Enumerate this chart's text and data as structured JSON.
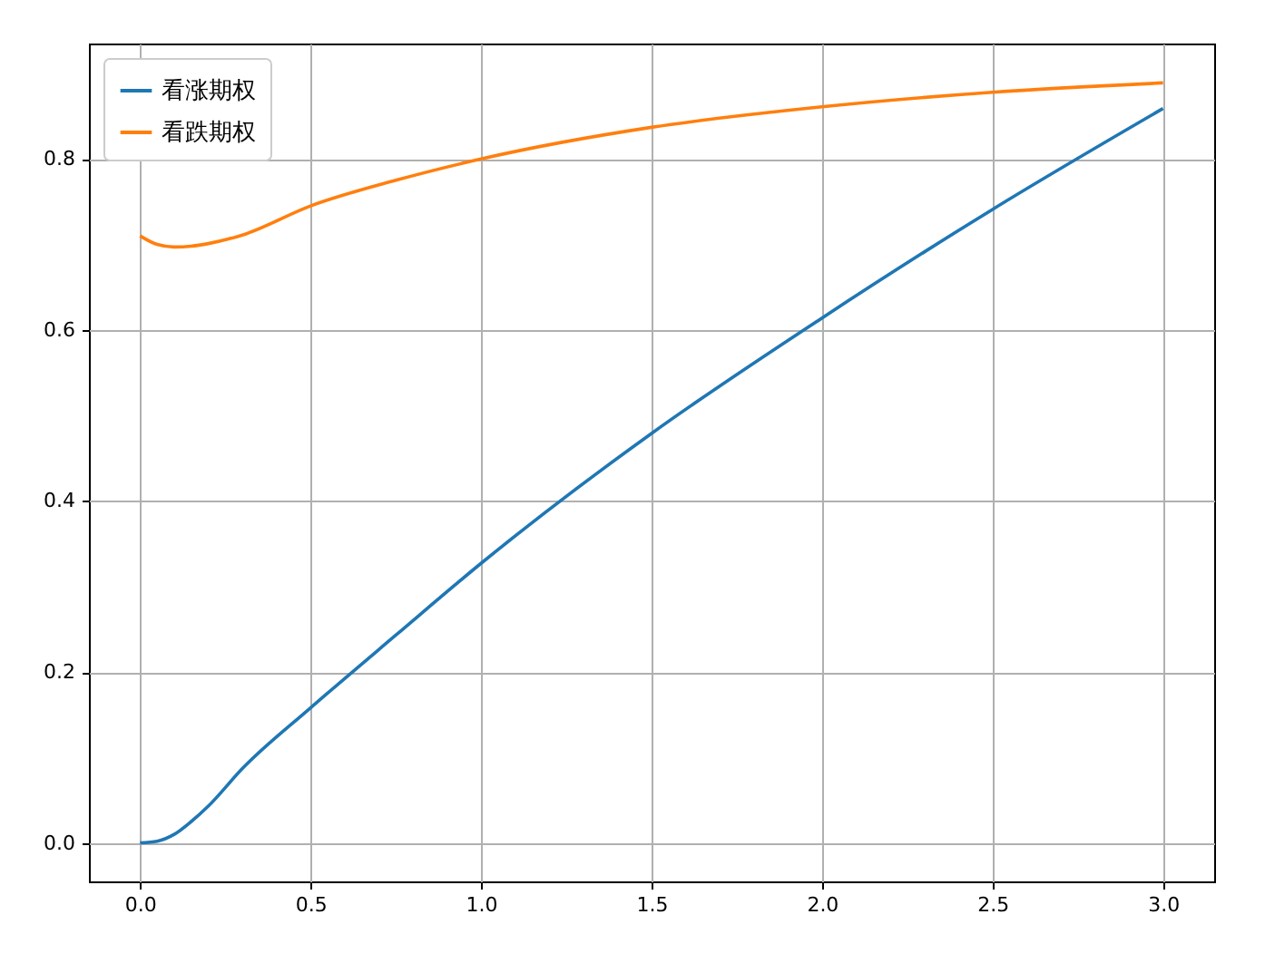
{
  "chart_data": {
    "type": "line",
    "legend": "top left",
    "grid": true,
    "xlim": [
      -0.15,
      3.15
    ],
    "ylim": [
      -0.045,
      0.935
    ],
    "xticks": [
      {
        "value": 0,
        "label": "0.0"
      },
      {
        "value": 0.5,
        "label": "0.5"
      },
      {
        "value": 1,
        "label": "1.0"
      },
      {
        "value": 1.5,
        "label": "1.5"
      },
      {
        "value": 2,
        "label": "2.0"
      },
      {
        "value": 2.5,
        "label": "2.5"
      },
      {
        "value": 3,
        "label": "3.0"
      }
    ],
    "yticks": [
      {
        "value": 0,
        "label": "0.0"
      },
      {
        "value": 0.2,
        "label": "0.2"
      },
      {
        "value": 0.4,
        "label": "0.4"
      },
      {
        "value": 0.6,
        "label": "0.6"
      },
      {
        "value": 0.8,
        "label": "0.8"
      }
    ],
    "x": [
      0,
      0.05,
      0.1,
      0.15,
      0.2,
      0.3,
      0.5,
      0.75,
      1.0,
      1.5,
      2.0,
      2.5,
      3.0
    ],
    "series": [
      {
        "name": "看涨期权",
        "color": "#1f77b4",
        "values": [
          0,
          0.002,
          0.01,
          0.025,
          0.043,
          0.087,
          0.158,
          0.243,
          0.327,
          0.479,
          0.614,
          0.741,
          0.859
        ]
      },
      {
        "name": "看跌期权",
        "color": "#ff7f0e",
        "values": [
          0.71,
          0.7,
          0.697,
          0.698,
          0.701,
          0.711,
          0.745,
          0.775,
          0.8,
          0.837,
          0.861,
          0.878,
          0.889
        ]
      }
    ]
  }
}
